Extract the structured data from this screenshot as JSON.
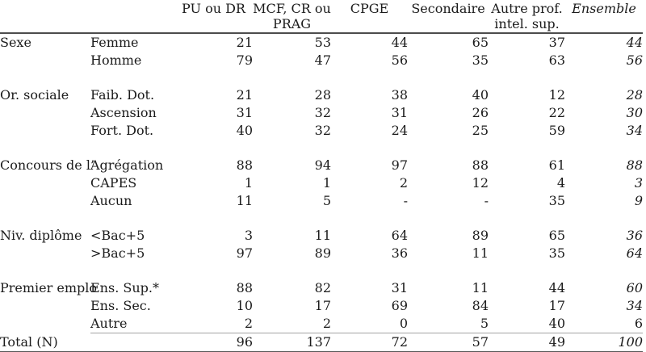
{
  "table": {
    "columns": [
      {
        "label": "PU ou DR",
        "italic": false
      },
      {
        "label": "MCF, CR ou\nPRAG",
        "italic": false
      },
      {
        "label": "CPGE",
        "italic": false
      },
      {
        "label": "Secondaire",
        "italic": false
      },
      {
        "label": "Autre prof.\nintel. sup.",
        "italic": false
      },
      {
        "label": "Ensemble",
        "italic": true
      }
    ],
    "sections": [
      {
        "label": "Sexe",
        "rows": [
          {
            "label": "Femme",
            "values": [
              "21",
              "53",
              "44",
              "65",
              "37",
              "44"
            ],
            "ensemble_italic": true
          },
          {
            "label": "Homme",
            "values": [
              "79",
              "47",
              "56",
              "35",
              "63",
              "56"
            ],
            "ensemble_italic": true
          }
        ]
      },
      {
        "label": "Or. sociale",
        "rows": [
          {
            "label": "Faib. Dot.",
            "values": [
              "21",
              "28",
              "38",
              "40",
              "12",
              "28"
            ],
            "ensemble_italic": true
          },
          {
            "label": "Ascension",
            "values": [
              "31",
              "32",
              "31",
              "26",
              "22",
              "30"
            ],
            "ensemble_italic": true
          },
          {
            "label": "Fort. Dot.",
            "values": [
              "40",
              "32",
              "24",
              "25",
              "59",
              "34"
            ],
            "ensemble_italic": true
          }
        ]
      },
      {
        "label": "Concours de l’",
        "rows": [
          {
            "label": "Agrégation",
            "values": [
              "88",
              "94",
              "97",
              "88",
              "61",
              "88"
            ],
            "ensemble_italic": true
          },
          {
            "label": "CAPES",
            "values": [
              "1",
              "1",
              "2",
              "12",
              "4",
              "3"
            ],
            "ensemble_italic": true
          },
          {
            "label": "Aucun",
            "values": [
              "11",
              "5",
              "-",
              "-",
              "35",
              "9"
            ],
            "ensemble_italic": true
          }
        ]
      },
      {
        "label": "Niv. diplôme",
        "rows": [
          {
            "label": "<Bac+5",
            "values": [
              "3",
              "11",
              "64",
              "89",
              "65",
              "36"
            ],
            "ensemble_italic": true
          },
          {
            "label": ">Bac+5",
            "values": [
              "97",
              "89",
              "36",
              "11",
              "35",
              "64"
            ],
            "ensemble_italic": true
          }
        ]
      },
      {
        "label": "Premier emplo",
        "rows": [
          {
            "label": "Ens. Sup.*",
            "values": [
              "88",
              "82",
              "31",
              "11",
              "44",
              "60"
            ],
            "ensemble_italic": true
          },
          {
            "label": "Ens. Sec.",
            "values": [
              "10",
              "17",
              "69",
              "84",
              "17",
              "34"
            ],
            "ensemble_italic": true
          },
          {
            "label": "Autre",
            "values": [
              "2",
              "2",
              "0",
              "5",
              "40",
              "6"
            ],
            "ensemble_italic": false
          }
        ]
      }
    ],
    "total": {
      "label": "Total (N)",
      "values": [
        "96",
        "137",
        "72",
        "57",
        "49",
        "100"
      ],
      "ensemble_italic": true
    },
    "colors": {
      "text": "#1b1b1b",
      "heavy_rule": "#4d4d4d",
      "light_rule": "#a3a3a3",
      "background": "#ffffff"
    }
  }
}
